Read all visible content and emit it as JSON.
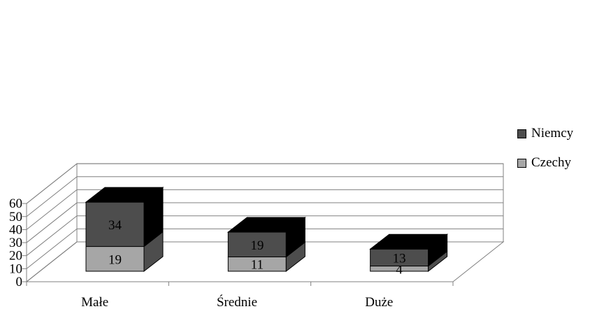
{
  "chart_data": {
    "type": "bar",
    "stacked": true,
    "three_d": true,
    "categories": [
      "Małe",
      "Średnie",
      "Duże"
    ],
    "series": [
      {
        "name": "Czechy",
        "values": [
          19,
          11,
          4
        ],
        "color": "#a6a6a6"
      },
      {
        "name": "Niemcy",
        "values": [
          34,
          19,
          13
        ],
        "color": "#4d4d4d"
      }
    ],
    "ylim": [
      0,
      60
    ],
    "yticks": [
      0,
      10,
      20,
      30,
      40,
      50,
      60
    ],
    "grid": true,
    "legend_position": "right",
    "colors": {
      "top_face": "#000000",
      "side_shade": "#4d4d4d",
      "axis": "#808080"
    }
  }
}
